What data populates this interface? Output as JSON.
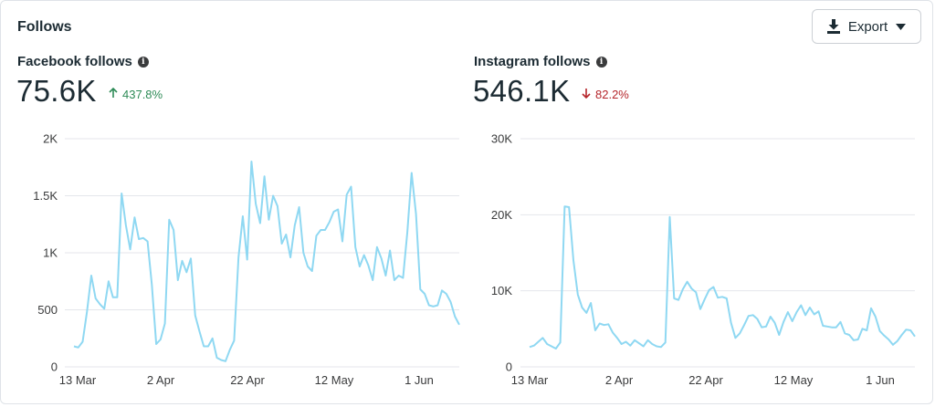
{
  "card": {
    "title": "Follows",
    "export_label": "Export"
  },
  "panels": [
    {
      "title": "Facebook follows",
      "value": "75.6K",
      "delta": "437.8%",
      "delta_direction": "up"
    },
    {
      "title": "Instagram follows",
      "value": "546.1K",
      "delta": "82.2%",
      "delta_direction": "down"
    }
  ],
  "colors": {
    "line": "#8fd8f2",
    "grid": "#e4e6eb",
    "up": "#2e8b57",
    "down": "#b5262b"
  },
  "chart_data": [
    {
      "type": "line",
      "title": "Facebook follows",
      "x_tick_labels": [
        "13 Mar",
        "2 Apr",
        "22 Apr",
        "12 May",
        "1 Jun"
      ],
      "y_tick_labels": [
        "0",
        "500",
        "1K",
        "1.5K",
        "2K"
      ],
      "y_ticks": [
        0,
        500,
        1000,
        1500,
        2000
      ],
      "ylim": [
        0,
        2000
      ],
      "grid": true,
      "values": [
        180,
        170,
        220,
        480,
        800,
        600,
        550,
        510,
        750,
        610,
        610,
        1520,
        1240,
        1030,
        1310,
        1120,
        1130,
        1100,
        720,
        200,
        240,
        380,
        1290,
        1200,
        760,
        930,
        830,
        950,
        450,
        310,
        180,
        180,
        250,
        80,
        60,
        50,
        150,
        230,
        960,
        1320,
        940,
        1800,
        1430,
        1260,
        1670,
        1290,
        1500,
        1410,
        1080,
        1160,
        960,
        1240,
        1400,
        1000,
        880,
        840,
        1150,
        1200,
        1200,
        1270,
        1360,
        1380,
        1100,
        1510,
        1580,
        1050,
        880,
        980,
        890,
        760,
        1050,
        950,
        800,
        1020,
        760,
        800,
        780,
        1180,
        1700,
        1340,
        680,
        640,
        540,
        530,
        540,
        670,
        640,
        570,
        440,
        370
      ]
    },
    {
      "type": "line",
      "title": "Instagram follows",
      "x_tick_labels": [
        "13 Mar",
        "2 Apr",
        "22 Apr",
        "12 May",
        "1 Jun"
      ],
      "y_tick_labels": [
        "0",
        "10K",
        "20K",
        "30K"
      ],
      "y_ticks": [
        0,
        10000,
        20000,
        30000
      ],
      "ylim": [
        0,
        30000
      ],
      "grid": true,
      "values": [
        2600,
        2800,
        3300,
        3800,
        3000,
        2700,
        2400,
        3200,
        21100,
        21000,
        14000,
        9500,
        7800,
        7100,
        8400,
        4800,
        5700,
        5500,
        5600,
        4500,
        3800,
        3000,
        3300,
        2800,
        3500,
        3100,
        2700,
        3500,
        3000,
        2700,
        2600,
        3200,
        19700,
        9000,
        8800,
        10200,
        11200,
        10300,
        9800,
        7600,
        8900,
        10100,
        10500,
        9100,
        9200,
        9000,
        5800,
        3800,
        4400,
        5500,
        6700,
        6800,
        6300,
        5200,
        5300,
        6600,
        5800,
        4200,
        5900,
        7200,
        6000,
        7200,
        8100,
        6800,
        7800,
        6900,
        7300,
        5400,
        5300,
        5200,
        5200,
        5900,
        4400,
        4200,
        3500,
        3600,
        5000,
        4800,
        7700,
        6600,
        4700,
        4100,
        3600,
        2900,
        3400,
        4200,
        4900,
        4800,
        4000
      ]
    }
  ]
}
